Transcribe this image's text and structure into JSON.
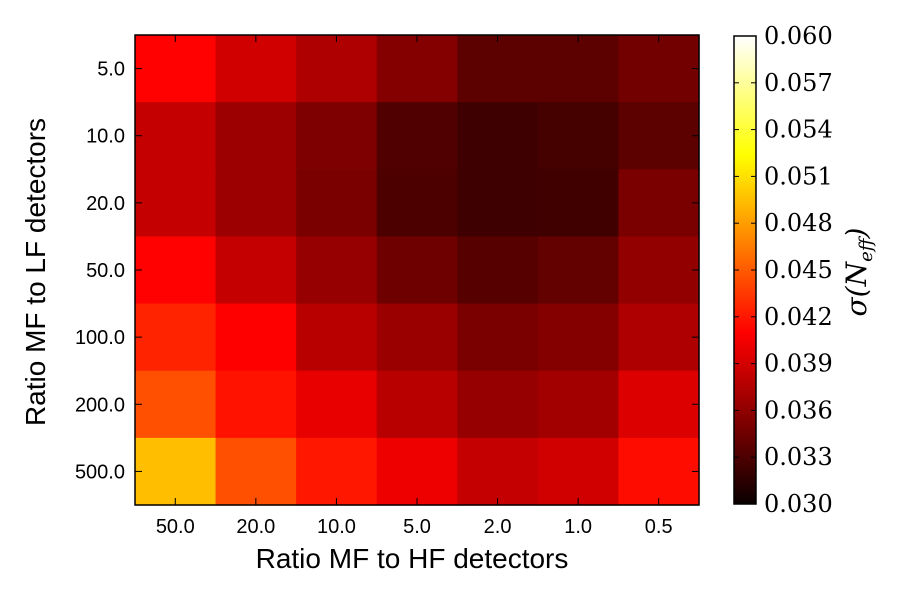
{
  "chart_data": {
    "type": "heatmap",
    "title": "",
    "xlabel": "Ratio MF to HF detectors",
    "ylabel": "Ratio MF to LF detectors",
    "x_categories": [
      "50.0",
      "20.0",
      "10.0",
      "5.0",
      "2.0",
      "1.0",
      "0.5"
    ],
    "y_categories": [
      "5.0",
      "10.0",
      "20.0",
      "50.0",
      "100.0",
      "200.0",
      "500.0"
    ],
    "values": [
      [
        0.041,
        0.0385,
        0.037,
        0.0352,
        0.0335,
        0.0335,
        0.0345
      ],
      [
        0.038,
        0.0363,
        0.035,
        0.033,
        0.0322,
        0.0325,
        0.0335
      ],
      [
        0.038,
        0.0363,
        0.0348,
        0.0328,
        0.0322,
        0.0323,
        0.0348
      ],
      [
        0.041,
        0.038,
        0.036,
        0.0343,
        0.0333,
        0.0338,
        0.0358
      ],
      [
        0.0425,
        0.0405,
        0.0375,
        0.0362,
        0.0348,
        0.0352,
        0.037
      ],
      [
        0.0445,
        0.0418,
        0.0395,
        0.0375,
        0.036,
        0.0365,
        0.039
      ],
      [
        0.0495,
        0.0445,
        0.042,
        0.0398,
        0.038,
        0.0385,
        0.0415
      ]
    ],
    "colormap": "hot",
    "colorbar": {
      "label": "σ(N_eff)",
      "range": [
        0.03,
        0.06
      ],
      "ticks": [
        "0.030",
        "0.033",
        "0.036",
        "0.039",
        "0.042",
        "0.045",
        "0.048",
        "0.051",
        "0.054",
        "0.057",
        "0.060"
      ]
    }
  }
}
